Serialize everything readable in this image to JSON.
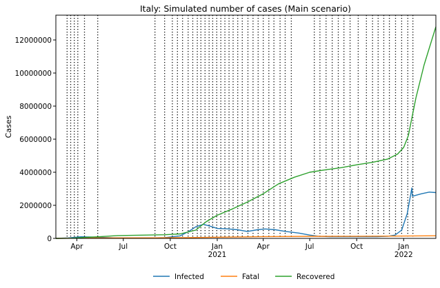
{
  "chart_data": {
    "type": "line",
    "title": "Italy: Simulated number of cases (Main scenario)",
    "xlabel": "",
    "ylabel": "Cases",
    "x_range": [
      "2020-02-20",
      "2022-03-05"
    ],
    "ylim": [
      0,
      13500000
    ],
    "y_ticks": [
      0,
      2000000,
      4000000,
      6000000,
      8000000,
      10000000,
      12000000
    ],
    "y_tick_labels": [
      "0",
      "2000000",
      "4000000",
      "6000000",
      "8000000",
      "10000000",
      "12000000"
    ],
    "x_ticks": [
      {
        "date": "2020-04-01",
        "label": "Apr",
        "sublabel": ""
      },
      {
        "date": "2020-07-01",
        "label": "Jul",
        "sublabel": ""
      },
      {
        "date": "2020-10-01",
        "label": "Oct",
        "sublabel": ""
      },
      {
        "date": "2021-01-01",
        "label": "Jan",
        "sublabel": "2021"
      },
      {
        "date": "2021-04-01",
        "label": "Apr",
        "sublabel": ""
      },
      {
        "date": "2021-07-01",
        "label": "Jul",
        "sublabel": ""
      },
      {
        "date": "2021-10-01",
        "label": "Oct",
        "sublabel": ""
      },
      {
        "date": "2022-01-01",
        "label": "Jan",
        "sublabel": "2022"
      }
    ],
    "phase_lines": [
      "2020-03-13",
      "2020-03-20",
      "2020-03-27",
      "2020-04-03",
      "2020-04-16",
      "2020-05-12",
      "2020-09-01",
      "2020-09-20",
      "2020-10-05",
      "2020-10-15",
      "2020-10-25",
      "2020-11-05",
      "2020-11-14",
      "2020-11-23",
      "2020-11-30",
      "2020-12-08",
      "2020-12-16",
      "2020-12-23",
      "2020-12-31",
      "2021-01-08",
      "2021-01-16",
      "2021-01-24",
      "2021-02-01",
      "2021-02-10",
      "2021-02-19",
      "2021-03-02",
      "2021-03-12",
      "2021-03-22",
      "2021-04-01",
      "2021-04-12",
      "2021-04-22",
      "2021-05-04",
      "2021-05-14",
      "2021-05-26",
      "2021-07-10",
      "2021-07-21",
      "2021-08-02",
      "2021-08-14",
      "2021-08-26",
      "2021-09-06",
      "2021-09-18",
      "2021-10-04",
      "2021-10-20",
      "2021-11-01",
      "2021-11-12",
      "2021-11-23",
      "2021-12-04",
      "2021-12-16",
      "2021-12-28",
      "2022-01-09",
      "2022-01-19"
    ],
    "legend_position": "bottom-center",
    "grid": false,
    "series": [
      {
        "name": "Infected",
        "color": "#1f77b4",
        "points": [
          [
            "2020-02-20",
            0
          ],
          [
            "2020-03-15",
            30000
          ],
          [
            "2020-04-10",
            100000
          ],
          [
            "2020-05-10",
            70000
          ],
          [
            "2020-06-15",
            30000
          ],
          [
            "2020-08-15",
            15000
          ],
          [
            "2020-09-20",
            40000
          ],
          [
            "2020-10-20",
            150000
          ],
          [
            "2020-11-05",
            400000
          ],
          [
            "2020-11-20",
            700000
          ],
          [
            "2020-12-05",
            850000
          ],
          [
            "2020-12-20",
            720000
          ],
          [
            "2021-01-01",
            600000
          ],
          [
            "2021-01-20",
            580000
          ],
          [
            "2021-02-10",
            520000
          ],
          [
            "2021-03-01",
            420000
          ],
          [
            "2021-03-20",
            520000
          ],
          [
            "2021-04-05",
            570000
          ],
          [
            "2021-04-25",
            520000
          ],
          [
            "2021-05-15",
            420000
          ],
          [
            "2021-06-10",
            320000
          ],
          [
            "2021-07-01",
            200000
          ],
          [
            "2021-07-20",
            120000
          ],
          [
            "2021-08-10",
            100000
          ],
          [
            "2021-09-10",
            100000
          ],
          [
            "2021-10-10",
            100000
          ],
          [
            "2021-11-10",
            100000
          ],
          [
            "2021-12-01",
            130000
          ],
          [
            "2021-12-15",
            200000
          ],
          [
            "2021-12-28",
            500000
          ],
          [
            "2022-01-08",
            1500000
          ],
          [
            "2022-01-17",
            3050000
          ],
          [
            "2022-01-18",
            2550000
          ],
          [
            "2022-02-05",
            2700000
          ],
          [
            "2022-02-20",
            2800000
          ],
          [
            "2022-03-05",
            2770000
          ]
        ]
      },
      {
        "name": "Fatal",
        "color": "#ff7f0e",
        "points": [
          [
            "2020-02-20",
            0
          ],
          [
            "2020-04-01",
            15000
          ],
          [
            "2020-05-15",
            30000
          ],
          [
            "2020-09-01",
            35000
          ],
          [
            "2020-11-01",
            45000
          ],
          [
            "2021-01-01",
            70000
          ],
          [
            "2021-04-01",
            110000
          ],
          [
            "2021-07-01",
            125000
          ],
          [
            "2021-10-01",
            130000
          ],
          [
            "2022-01-01",
            140000
          ],
          [
            "2022-03-05",
            160000
          ]
        ]
      },
      {
        "name": "Recovered",
        "color": "#2ca02c",
        "points": [
          [
            "2020-02-20",
            0
          ],
          [
            "2020-03-20",
            10000
          ],
          [
            "2020-04-15",
            60000
          ],
          [
            "2020-05-15",
            100000
          ],
          [
            "2020-06-20",
            170000
          ],
          [
            "2020-08-15",
            200000
          ],
          [
            "2020-09-20",
            220000
          ],
          [
            "2020-10-20",
            270000
          ],
          [
            "2020-11-20",
            500000
          ],
          [
            "2020-12-10",
            1000000
          ],
          [
            "2021-01-01",
            1400000
          ],
          [
            "2021-02-01",
            1800000
          ],
          [
            "2021-03-01",
            2200000
          ],
          [
            "2021-04-01",
            2700000
          ],
          [
            "2021-05-01",
            3300000
          ],
          [
            "2021-06-01",
            3700000
          ],
          [
            "2021-07-01",
            4000000
          ],
          [
            "2021-08-01",
            4150000
          ],
          [
            "2021-09-01",
            4280000
          ],
          [
            "2021-10-01",
            4450000
          ],
          [
            "2021-11-01",
            4600000
          ],
          [
            "2021-12-01",
            4800000
          ],
          [
            "2021-12-20",
            5100000
          ],
          [
            "2022-01-01",
            5500000
          ],
          [
            "2022-01-10",
            6200000
          ],
          [
            "2022-01-25",
            8500000
          ],
          [
            "2022-02-10",
            10500000
          ],
          [
            "2022-03-05",
            12800000
          ]
        ]
      }
    ]
  }
}
